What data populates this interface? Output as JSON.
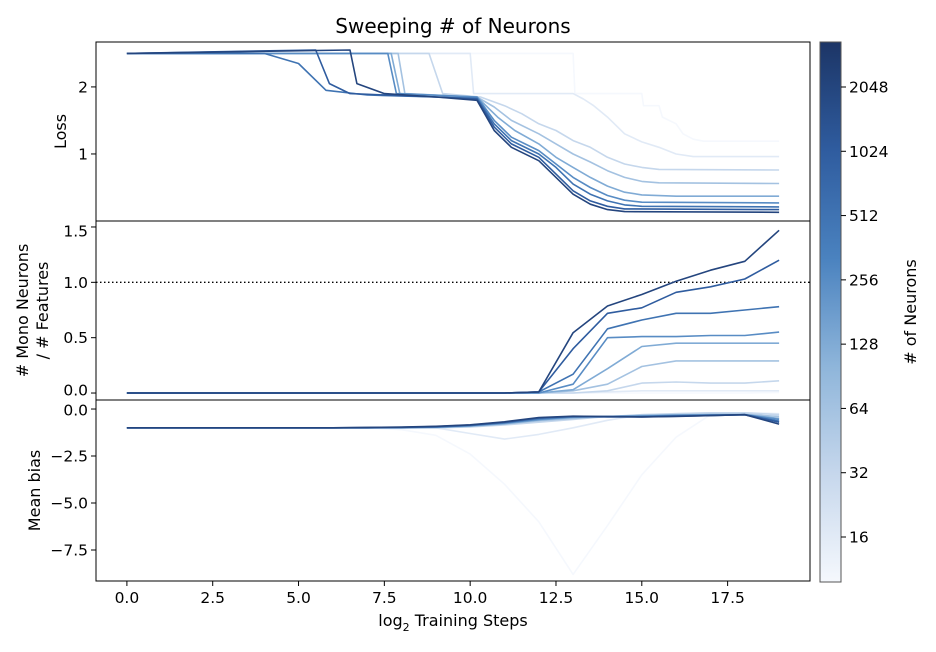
{
  "chart_data": {
    "type": "line",
    "title": "Sweeping # of Neurons",
    "xlabel": {
      "prefix": "log",
      "sub": "2",
      "rest": " Training Steps"
    },
    "xlim": [
      -0.9,
      19.9
    ],
    "xticks": [
      0,
      2.5,
      5,
      7.5,
      10,
      12.5,
      15,
      17.5
    ],
    "xtick_labels": [
      "0.0",
      "2.5",
      "5.0",
      "7.5",
      "10.0",
      "12.5",
      "15.0",
      "17.5"
    ],
    "colorbar": {
      "label": "# of Neurons",
      "scale": "log2",
      "range_log2": [
        3.3,
        11.7
      ],
      "ticks": [
        16,
        32,
        64,
        128,
        256,
        512,
        1024,
        2048
      ],
      "tick_labels": [
        "16",
        "32",
        "64",
        "128",
        "256",
        "512",
        "1024",
        "2048"
      ],
      "colormap_stops": [
        "#f5f8fd",
        "#c6d7ec",
        "#8eb5da",
        "#4a82bf",
        "#2f5c9f",
        "#1c3566"
      ]
    },
    "series_neurons": [
      8,
      16,
      32,
      64,
      128,
      256,
      512,
      1024,
      2048
    ],
    "panels": [
      {
        "id": "loss",
        "ylabel": [
          "Loss"
        ],
        "ylim": [
          0,
          2.67
        ],
        "yticks": [
          1,
          2
        ],
        "ytick_labels": [
          "1",
          "2"
        ],
        "series": [
          [
            [
              0,
              2.5
            ],
            [
              13.0,
              2.5
            ],
            [
              13.05,
              1.9
            ],
            [
              15.0,
              1.9
            ],
            [
              15.05,
              1.72
            ],
            [
              15.5,
              1.72
            ],
            [
              15.6,
              1.55
            ],
            [
              16.0,
              1.45
            ],
            [
              16.2,
              1.3
            ],
            [
              16.5,
              1.22
            ],
            [
              16.8,
              1.19
            ],
            [
              19,
              1.19
            ]
          ],
          [
            [
              0,
              2.5
            ],
            [
              10.0,
              2.5
            ],
            [
              10.1,
              1.9
            ],
            [
              13.0,
              1.9
            ],
            [
              13.3,
              1.82
            ],
            [
              13.6,
              1.72
            ],
            [
              14.0,
              1.55
            ],
            [
              14.5,
              1.3
            ],
            [
              15.0,
              1.18
            ],
            [
              15.5,
              1.1
            ],
            [
              16.0,
              1.0
            ],
            [
              16.5,
              0.96
            ],
            [
              19,
              0.96
            ]
          ],
          [
            [
              0,
              2.5
            ],
            [
              8.8,
              2.5
            ],
            [
              9.2,
              1.9
            ],
            [
              10.3,
              1.85
            ],
            [
              11,
              1.72
            ],
            [
              11.5,
              1.6
            ],
            [
              12,
              1.45
            ],
            [
              12.5,
              1.35
            ],
            [
              13,
              1.2
            ],
            [
              13.5,
              1.1
            ],
            [
              14,
              0.95
            ],
            [
              14.5,
              0.85
            ],
            [
              15,
              0.8
            ],
            [
              15.5,
              0.77
            ],
            [
              19,
              0.76
            ]
          ],
          [
            [
              0,
              2.5
            ],
            [
              7.9,
              2.5
            ],
            [
              8.1,
              1.9
            ],
            [
              10.2,
              1.85
            ],
            [
              10.7,
              1.7
            ],
            [
              11.2,
              1.5
            ],
            [
              12,
              1.3
            ],
            [
              12.5,
              1.15
            ],
            [
              13,
              1.0
            ],
            [
              13.5,
              0.88
            ],
            [
              14,
              0.75
            ],
            [
              14.5,
              0.65
            ],
            [
              15,
              0.59
            ],
            [
              15.5,
              0.57
            ],
            [
              19,
              0.56
            ]
          ],
          [
            [
              0,
              2.5
            ],
            [
              7.7,
              2.5
            ],
            [
              7.95,
              1.9
            ],
            [
              10.2,
              1.85
            ],
            [
              10.8,
              1.55
            ],
            [
              11.3,
              1.35
            ],
            [
              12,
              1.15
            ],
            [
              12.5,
              0.95
            ],
            [
              13,
              0.8
            ],
            [
              13.5,
              0.65
            ],
            [
              14,
              0.52
            ],
            [
              14.5,
              0.43
            ],
            [
              15,
              0.39
            ],
            [
              16,
              0.37
            ],
            [
              19,
              0.37
            ]
          ],
          [
            [
              0,
              2.5
            ],
            [
              7.6,
              2.5
            ],
            [
              7.85,
              1.9
            ],
            [
              10.2,
              1.85
            ],
            [
              10.7,
              1.5
            ],
            [
              11.2,
              1.25
            ],
            [
              12,
              1.05
            ],
            [
              12.5,
              0.85
            ],
            [
              13,
              0.65
            ],
            [
              13.5,
              0.5
            ],
            [
              14,
              0.38
            ],
            [
              14.5,
              0.31
            ],
            [
              15,
              0.28
            ],
            [
              19,
              0.27
            ]
          ],
          [
            [
              0,
              2.5
            ],
            [
              4.0,
              2.5
            ],
            [
              5.0,
              2.35
            ],
            [
              5.8,
              1.95
            ],
            [
              7,
              1.88
            ],
            [
              9,
              1.85
            ],
            [
              10.2,
              1.83
            ],
            [
              10.7,
              1.45
            ],
            [
              11.2,
              1.2
            ],
            [
              12,
              1.0
            ],
            [
              12.5,
              0.8
            ],
            [
              13,
              0.55
            ],
            [
              13.5,
              0.4
            ],
            [
              14,
              0.3
            ],
            [
              14.5,
              0.24
            ],
            [
              15,
              0.22
            ],
            [
              19,
              0.21
            ]
          ],
          [
            [
              0,
              2.5
            ],
            [
              5.5,
              2.55
            ],
            [
              5.9,
              2.05
            ],
            [
              6.5,
              1.9
            ],
            [
              9,
              1.85
            ],
            [
              10.2,
              1.82
            ],
            [
              10.7,
              1.4
            ],
            [
              11.2,
              1.15
            ],
            [
              12,
              0.95
            ],
            [
              12.5,
              0.7
            ],
            [
              13,
              0.45
            ],
            [
              13.5,
              0.3
            ],
            [
              14,
              0.22
            ],
            [
              14.5,
              0.18
            ],
            [
              19,
              0.17
            ]
          ],
          [
            [
              0,
              2.5
            ],
            [
              6.5,
              2.55
            ],
            [
              6.7,
              2.05
            ],
            [
              7.5,
              1.9
            ],
            [
              9,
              1.85
            ],
            [
              10.2,
              1.8
            ],
            [
              10.7,
              1.35
            ],
            [
              11.2,
              1.1
            ],
            [
              12,
              0.9
            ],
            [
              12.5,
              0.65
            ],
            [
              13,
              0.4
            ],
            [
              13.5,
              0.25
            ],
            [
              14,
              0.17
            ],
            [
              14.5,
              0.14
            ],
            [
              19,
              0.13
            ]
          ]
        ]
      },
      {
        "id": "mono",
        "ylabel": [
          "# Mono Neurons",
          "/ # Features"
        ],
        "ylim": [
          -0.063,
          1.554
        ],
        "yticks": [
          0,
          0.5,
          1.0,
          1.5
        ],
        "ytick_labels": [
          "0.0",
          "0.5",
          "1.0",
          "1.5"
        ],
        "reference_line": 1.0,
        "x": [
          0,
          1,
          2,
          3,
          4,
          5,
          6,
          7,
          8,
          9,
          10,
          11,
          12,
          13,
          14,
          15,
          16,
          17,
          18,
          19
        ],
        "series": [
          [
            0,
            0,
            0,
            0,
            0,
            0,
            0,
            0,
            0,
            0,
            0,
            0,
            0,
            0,
            0,
            0,
            0,
            0,
            0,
            0.005
          ],
          [
            0,
            0,
            0,
            0,
            0,
            0,
            0,
            0,
            0,
            0,
            0,
            0,
            0,
            0,
            0.01,
            0.02,
            0.02,
            0.02,
            0.02,
            0.02
          ],
          [
            0,
            0,
            0,
            0,
            0,
            0,
            0,
            0,
            0,
            0,
            0,
            0,
            0,
            0,
            0.02,
            0.09,
            0.1,
            0.09,
            0.09,
            0.11
          ],
          [
            0,
            0,
            0,
            0,
            0,
            0,
            0,
            0,
            0,
            0,
            0,
            0,
            0,
            0.02,
            0.08,
            0.24,
            0.29,
            0.29,
            0.29,
            0.29
          ],
          [
            0,
            0,
            0,
            0,
            0,
            0,
            0,
            0,
            0,
            0,
            0,
            0,
            0,
            0.03,
            0.22,
            0.42,
            0.45,
            0.45,
            0.45,
            0.45
          ],
          [
            0,
            0,
            0,
            0,
            0,
            0,
            0,
            0,
            0,
            0,
            0,
            0,
            0,
            0.08,
            0.5,
            0.51,
            0.51,
            0.52,
            0.52,
            0.55
          ],
          [
            0,
            0,
            0,
            0,
            0,
            0,
            0,
            0,
            0,
            0,
            0,
            0,
            0.01,
            0.17,
            0.58,
            0.66,
            0.72,
            0.72,
            0.75,
            0.78
          ],
          [
            0,
            0,
            0,
            0,
            0,
            0,
            0,
            0,
            0,
            0,
            0,
            0,
            0.01,
            0.4,
            0.72,
            0.77,
            0.91,
            0.96,
            1.03,
            1.2
          ],
          [
            0,
            0,
            0,
            0,
            0,
            0,
            0,
            0,
            0,
            0,
            0,
            0,
            0.01,
            0.545,
            0.786,
            0.89,
            1.01,
            1.11,
            1.19,
            1.47
          ]
        ]
      },
      {
        "id": "bias",
        "ylabel": [
          "Mean bias"
        ],
        "ylim": [
          -9.15,
          0.48
        ],
        "yticks": [
          0,
          -2.5,
          -5,
          -7.5
        ],
        "ytick_labels": [
          "0.0",
          "−2.5",
          "−5.0",
          "−7.5"
        ],
        "x": [
          0,
          1,
          2,
          3,
          4,
          5,
          6,
          7,
          8,
          9,
          10,
          11,
          12,
          13,
          14,
          15,
          16,
          17,
          18,
          19
        ],
        "series": [
          [
            -1,
            -1,
            -1,
            -1,
            -1,
            -1,
            -1,
            -1,
            -1.1,
            -1.4,
            -2.4,
            -4.0,
            -6.0,
            -8.8,
            -6.2,
            -3.5,
            -1.5,
            -0.3,
            -0.2,
            -0.3
          ],
          [
            -1,
            -1,
            -1,
            -1,
            -1,
            -1,
            -1,
            -1,
            -1,
            -1,
            -1.3,
            -1.6,
            -1.35,
            -1.0,
            -0.6,
            -0.3,
            -0.25,
            -0.2,
            -0.2,
            -0.25
          ],
          [
            -1,
            -1,
            -1,
            -1,
            -1,
            -1,
            -1,
            -1,
            -1,
            -1,
            -0.95,
            -0.85,
            -0.7,
            -0.55,
            -0.4,
            -0.3,
            -0.25,
            -0.2,
            -0.2,
            -0.3
          ],
          [
            -1,
            -1,
            -1,
            -1,
            -1,
            -1,
            -1,
            -1,
            -1,
            -0.98,
            -0.92,
            -0.8,
            -0.62,
            -0.5,
            -0.4,
            -0.33,
            -0.3,
            -0.28,
            -0.28,
            -0.4
          ],
          [
            -1,
            -1,
            -1,
            -1,
            -1,
            -1,
            -1,
            -1,
            -1,
            -0.97,
            -0.9,
            -0.78,
            -0.58,
            -0.45,
            -0.4,
            -0.36,
            -0.32,
            -0.3,
            -0.3,
            -0.5
          ],
          [
            -1,
            -1,
            -1,
            -1,
            -1,
            -1,
            -1,
            -1,
            -0.99,
            -0.96,
            -0.88,
            -0.75,
            -0.55,
            -0.42,
            -0.4,
            -0.38,
            -0.34,
            -0.32,
            -0.3,
            -0.55
          ],
          [
            -1,
            -1,
            -1,
            -1,
            -1,
            -1,
            -1,
            -1,
            -0.98,
            -0.95,
            -0.87,
            -0.72,
            -0.5,
            -0.4,
            -0.4,
            -0.4,
            -0.36,
            -0.33,
            -0.3,
            -0.65
          ],
          [
            -1,
            -1,
            -1,
            -1,
            -1,
            -1,
            -1,
            -0.99,
            -0.97,
            -0.93,
            -0.85,
            -0.7,
            -0.47,
            -0.4,
            -0.42,
            -0.42,
            -0.38,
            -0.35,
            -0.3,
            -0.7
          ],
          [
            -1,
            -1,
            -1,
            -1,
            -1,
            -1,
            -1,
            -0.98,
            -0.96,
            -0.92,
            -0.84,
            -0.68,
            -0.45,
            -0.38,
            -0.4,
            -0.42,
            -0.4,
            -0.35,
            -0.3,
            -0.8
          ]
        ]
      }
    ]
  }
}
